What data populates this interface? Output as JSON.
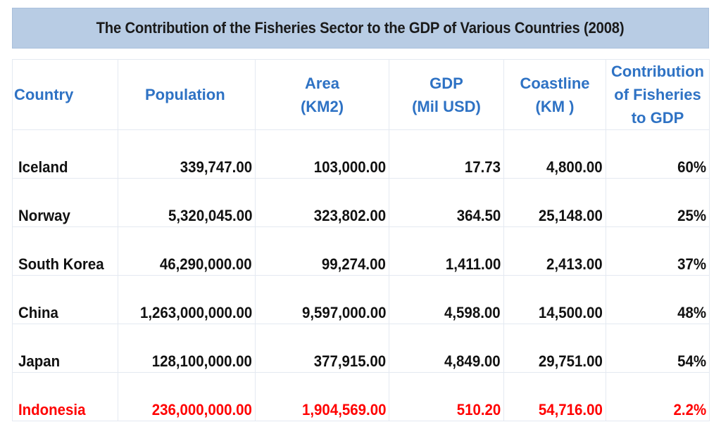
{
  "chart_data": {
    "type": "table",
    "title": "The Contribution of the Fisheries Sector to the GDP of Various Countries (2008)",
    "columns": [
      {
        "key": "country",
        "lines": [
          "Country"
        ]
      },
      {
        "key": "population",
        "lines": [
          "Population"
        ]
      },
      {
        "key": "area",
        "lines": [
          "Area",
          "(KM2)"
        ]
      },
      {
        "key": "gdp",
        "lines": [
          "GDP",
          "(Mil USD)"
        ]
      },
      {
        "key": "coastline",
        "lines": [
          "Coastline",
          "(KM )"
        ]
      },
      {
        "key": "contribution",
        "lines": [
          "Contribution",
          "of Fisheries",
          "to GDP"
        ]
      }
    ],
    "rows": [
      {
        "country": "Iceland",
        "population": "339,747.00",
        "area": "103,000.00",
        "gdp": "17.73",
        "coastline": "4,800.00",
        "contribution": "60%"
      },
      {
        "country": "Norway",
        "population": "5,320,045.00",
        "area": "323,802.00",
        "gdp": "364.50",
        "coastline": "25,148.00",
        "contribution": "25%"
      },
      {
        "country": "South Korea",
        "population": "46,290,000.00",
        "area": "99,274.00",
        "gdp": "1,411.00",
        "coastline": "2,413.00",
        "contribution": "37%"
      },
      {
        "country": "China",
        "population": "1,263,000,000.00",
        "area": "9,597,000.00",
        "gdp": "4,598.00",
        "coastline": "14,500.00",
        "contribution": "48%"
      },
      {
        "country": "Japan",
        "population": "128,100,000.00",
        "area": "377,915.00",
        "gdp": "4,849.00",
        "coastline": "29,751.00",
        "contribution": "54%"
      },
      {
        "country": "Indonesia",
        "population": "236,000,000.00",
        "area": "1,904,569.00",
        "gdp": "510.20",
        "coastline": "54,716.00",
        "contribution": "2.2%",
        "highlight": true
      }
    ]
  },
  "colors": {
    "title_background": "#b8cce4",
    "header_text": "#2e72c4",
    "body_text": "#111111",
    "highlight_text": "#ff0000",
    "grid_lines": "#e4e9f1"
  }
}
